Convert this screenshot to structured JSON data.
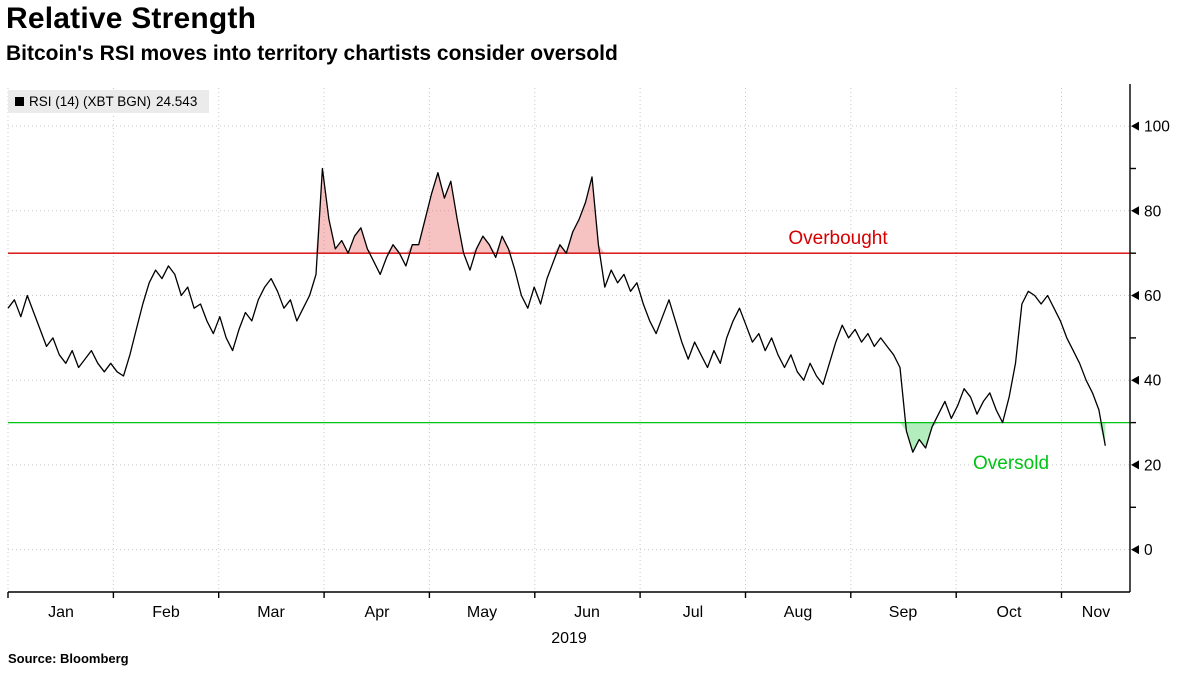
{
  "header": {
    "title": "Relative Strength",
    "subtitle": "Bitcoin's RSI moves into territory chartists consider oversold"
  },
  "legend": {
    "label": "RSI (14) (XBT BGN)",
    "value": "24.543"
  },
  "footer": {
    "source": "Source:  Bloomberg"
  },
  "chart_data": {
    "type": "line",
    "title": "Relative Strength",
    "subtitle": "Bitcoin's RSI moves into territory chartists consider oversold",
    "legend_position": "top-left",
    "grid": true,
    "x_axis": {
      "year_label": "2019",
      "month_labels": [
        "Jan",
        "Feb",
        "Mar",
        "Apr",
        "May",
        "Jun",
        "Jul",
        "Aug",
        "Sep",
        "Oct",
        "Nov"
      ],
      "months_shown": 10.65,
      "data_fraction": 0.978
    },
    "y_axis": {
      "side": "right",
      "ticks": [
        0,
        20,
        40,
        60,
        80,
        100
      ],
      "minor_ticks": [
        10,
        30,
        50,
        70,
        90
      ],
      "plot_range": [
        -10,
        109
      ]
    },
    "thresholds": {
      "overbought": {
        "value": 70,
        "label": "Overbought",
        "color": "#d60000",
        "fill": "rgba(228,80,80,0.35)"
      },
      "oversold": {
        "value": 30,
        "label": "Oversold",
        "color": "#00c414",
        "fill": "rgba(60,210,90,0.40)"
      }
    },
    "series": [
      {
        "name": "RSI (14) (XBT BGN)",
        "color": "#000000",
        "last_value": 24.543,
        "values": [
          57,
          59,
          55,
          60,
          56,
          52,
          48,
          50,
          46,
          44,
          47,
          43,
          45,
          47,
          44,
          42,
          44,
          42,
          41,
          46,
          52,
          58,
          63,
          66,
          64,
          67,
          65,
          60,
          62,
          57,
          58,
          54,
          51,
          55,
          50,
          47,
          52,
          56,
          54,
          59,
          62,
          64,
          61,
          57,
          59,
          54,
          57,
          60,
          65,
          90,
          78,
          71,
          73,
          70,
          74,
          76,
          71,
          68,
          65,
          69,
          72,
          70,
          67,
          72,
          72,
          78,
          84,
          89,
          83,
          87,
          78,
          70,
          66,
          71,
          74,
          72,
          69,
          74,
          71,
          66,
          60,
          57,
          62,
          58,
          64,
          68,
          72,
          70,
          75,
          78,
          82,
          88,
          72,
          62,
          66,
          63,
          65,
          61,
          63,
          58,
          54,
          51,
          55,
          59,
          54,
          49,
          45,
          49,
          46,
          43,
          47,
          44,
          50,
          54,
          57,
          53,
          49,
          51,
          47,
          50,
          46,
          43,
          46,
          42,
          40,
          44,
          41,
          39,
          44,
          49,
          53,
          50,
          52,
          49,
          51,
          48,
          50,
          48,
          46,
          43,
          28,
          23,
          26,
          24,
          29,
          32,
          35,
          31,
          34,
          38,
          36,
          32,
          35,
          37,
          33,
          30,
          36,
          44,
          58,
          61,
          60,
          58,
          60,
          57,
          54,
          50,
          47,
          44,
          40,
          37,
          33,
          24.543
        ]
      }
    ]
  }
}
